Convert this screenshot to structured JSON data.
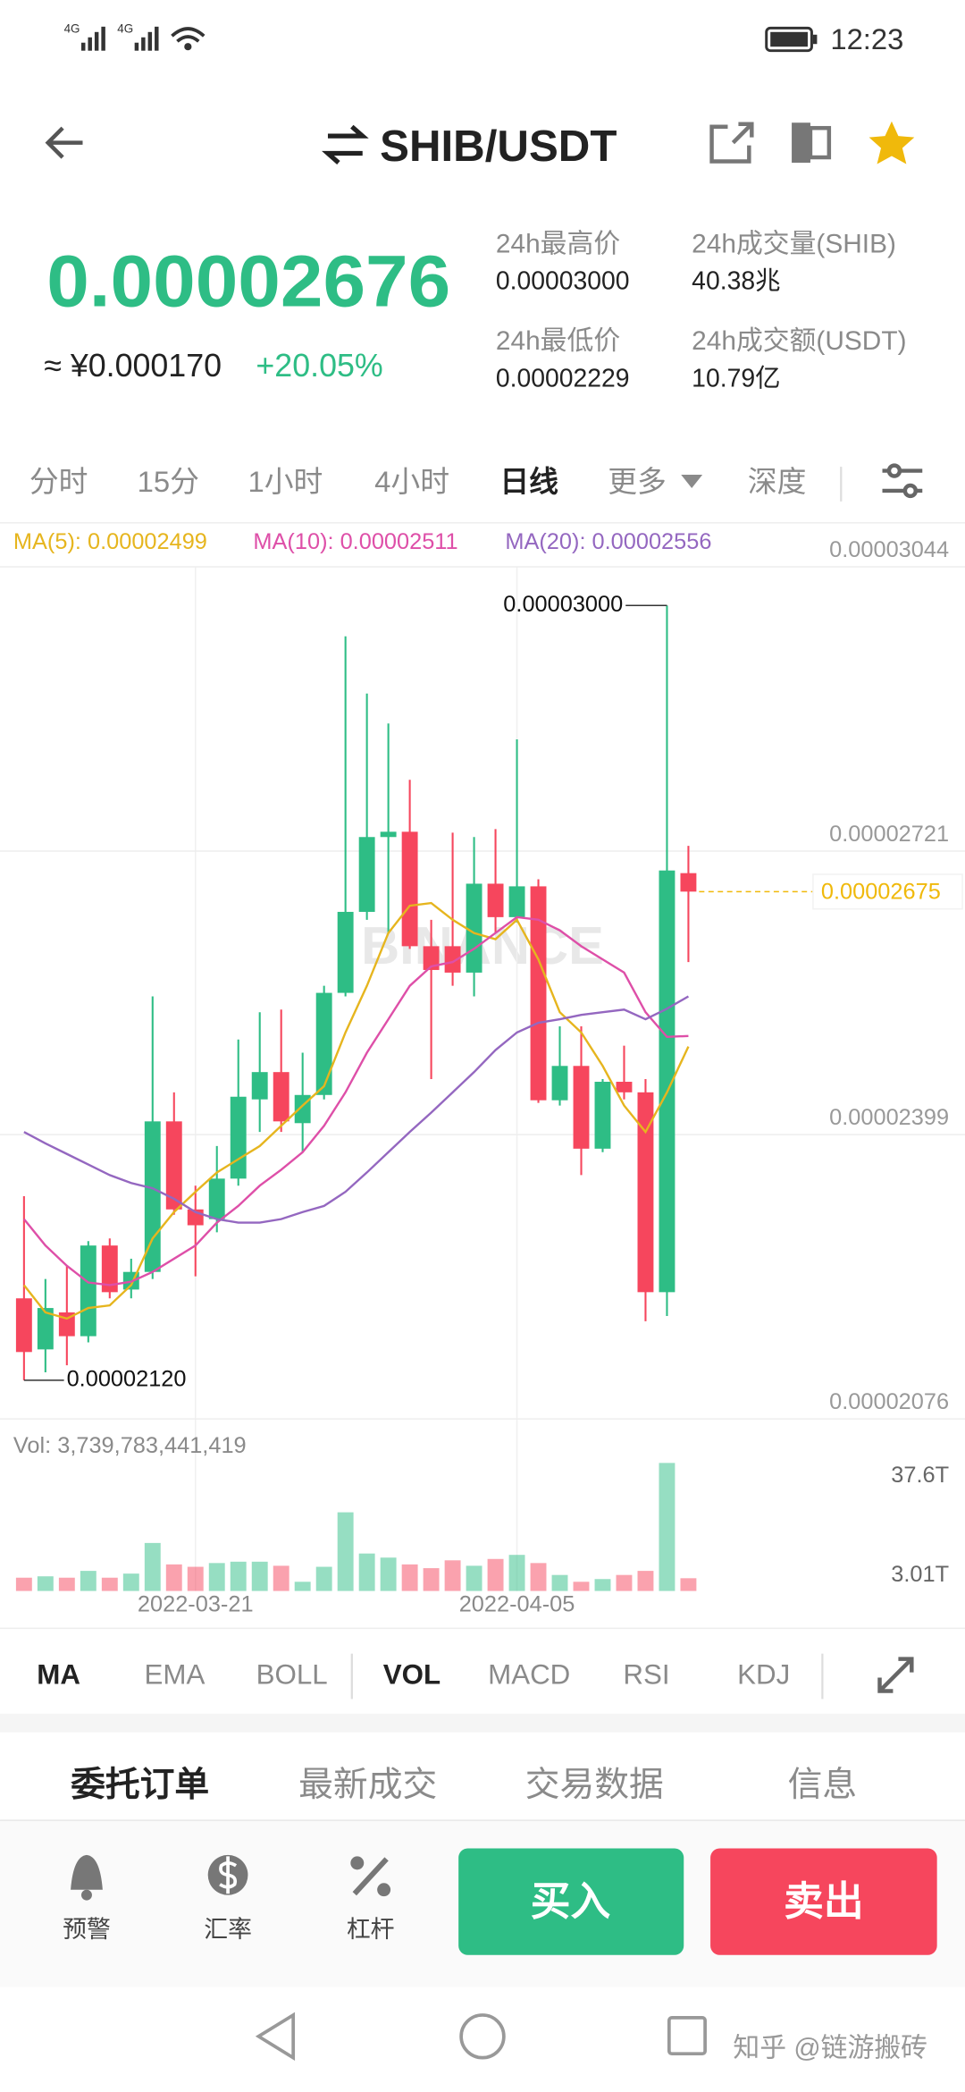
{
  "status_bar": {
    "signal_1": "4G",
    "signal_2": "4G",
    "time": "12:23"
  },
  "header": {
    "pair": "SHIB/USDT"
  },
  "ticker": {
    "last_price": "0.00002676",
    "cny_price": "≈ ¥0.000170",
    "change": "+20.05%",
    "stats": [
      {
        "label": "24h最高价",
        "value": "0.00003000"
      },
      {
        "label": "24h成交量(SHIB)",
        "value": "40.38兆"
      },
      {
        "label": "24h最低价",
        "value": "0.00002229"
      },
      {
        "label": "24h成交额(USDT)",
        "value": "10.79亿"
      }
    ]
  },
  "intervals": [
    {
      "label": "分时"
    },
    {
      "label": "15分"
    },
    {
      "label": "1小时"
    },
    {
      "label": "4小时"
    },
    {
      "label": "日线",
      "selected": true
    },
    {
      "label": "更多"
    },
    {
      "label": "深度"
    }
  ],
  "chart_data": {
    "type": "candlestick",
    "watermark": "BINANCE",
    "up_color": "#2ebd85",
    "down_color": "#f6465d",
    "categories": [
      null,
      null,
      null,
      null,
      null,
      null,
      null,
      null,
      "2022-03-21",
      null,
      null,
      null,
      null,
      null,
      null,
      null,
      null,
      null,
      null,
      null,
      null,
      null,
      null,
      "2022-04-05",
      null,
      null,
      null,
      null,
      null,
      null,
      null,
      null
    ],
    "open": [
      2.213e-05,
      2.155e-05,
      2.197e-05,
      2.17e-05,
      2.273e-05,
      2.223e-05,
      2.243e-05,
      2.414e-05,
      2.314e-05,
      2.303e-05,
      2.349e-05,
      2.439e-05,
      2.47e-05,
      2.412e-05,
      2.444e-05,
      2.56e-05,
      2.652e-05,
      2.737e-05,
      2.743e-05,
      2.613e-05,
      2.613e-05,
      2.583e-05,
      2.684e-05,
      2.646e-05,
      2.681e-05,
      2.438e-05,
      2.477e-05,
      2.383e-05,
      2.459e-05,
      2.447e-05,
      2.22e-05,
      2.696e-05
    ],
    "high": [
      2.329e-05,
      2.235e-05,
      2.25e-05,
      2.278e-05,
      2.281e-05,
      2.258e-05,
      2.556e-05,
      2.447e-05,
      2.341e-05,
      2.386e-05,
      2.507e-05,
      2.538e-05,
      2.541e-05,
      2.492e-05,
      2.568e-05,
      2.965e-05,
      2.9e-05,
      2.866e-05,
      2.802e-05,
      2.643e-05,
      2.742e-05,
      2.737e-05,
      2.746e-05,
      2.848e-05,
      2.689e-05,
      2.522e-05,
      2.522e-05,
      2.462e-05,
      2.5e-05,
      2.462e-05,
      3e-05,
      2.727e-05
    ],
    "low": [
      2.12e-05,
      2.129e-05,
      2.137e-05,
      2.163e-05,
      2.213e-05,
      2.213e-05,
      2.235e-05,
      2.308e-05,
      2.238e-05,
      2.288e-05,
      2.341e-05,
      2.402e-05,
      2.402e-05,
      2.379e-05,
      2.439e-05,
      2.556e-05,
      2.643e-05,
      2.628e-05,
      2.61e-05,
      2.462e-05,
      2.568e-05,
      2.556e-05,
      2.628e-05,
      2.64e-05,
      2.435e-05,
      2.432e-05,
      2.353e-05,
      2.379e-05,
      2.439e-05,
      2.187e-05,
      2.193e-05,
      2.595e-05
    ],
    "close": [
      2.152e-05,
      2.202e-05,
      2.17e-05,
      2.273e-05,
      2.22e-05,
      2.243e-05,
      2.414e-05,
      2.314e-05,
      2.296e-05,
      2.349e-05,
      2.442e-05,
      2.47e-05,
      2.414e-05,
      2.444e-05,
      2.56e-05,
      2.652e-05,
      2.737e-05,
      2.743e-05,
      2.613e-05,
      2.586e-05,
      2.583e-05,
      2.684e-05,
      2.646e-05,
      2.681e-05,
      2.438e-05,
      2.477e-05,
      2.383e-05,
      2.459e-05,
      2.447e-05,
      2.22e-05,
      2.699e-05,
      2.675e-05
    ],
    "series": [
      {
        "name": "MA(5): 0.00002499",
        "color": "#e6b51e",
        "values": [
          2.228e-05,
          2.197e-05,
          2.19e-05,
          2.202e-05,
          2.205e-05,
          2.228e-05,
          2.281e-05,
          2.311e-05,
          2.334e-05,
          2.356e-05,
          2.371e-05,
          2.386e-05,
          2.409e-05,
          2.432e-05,
          2.454e-05,
          2.515e-05,
          2.568e-05,
          2.628e-05,
          2.659e-05,
          2.662e-05,
          2.643e-05,
          2.628e-05,
          2.621e-05,
          2.643e-05,
          2.598e-05,
          2.538e-05,
          2.515e-05,
          2.477e-05,
          2.432e-05,
          2.402e-05,
          2.447e-05,
          2.499e-05
        ]
      },
      {
        "name": "MA(10): 0.00002511",
        "color": "#de4fa8",
        "values": [
          2.303e-05,
          2.273e-05,
          2.25e-05,
          2.231e-05,
          2.228e-05,
          2.232e-05,
          2.243e-05,
          2.258e-05,
          2.273e-05,
          2.299e-05,
          2.318e-05,
          2.341e-05,
          2.359e-05,
          2.379e-05,
          2.409e-05,
          2.447e-05,
          2.492e-05,
          2.53e-05,
          2.568e-05,
          2.59e-05,
          2.595e-05,
          2.61e-05,
          2.628e-05,
          2.646e-05,
          2.643e-05,
          2.631e-05,
          2.613e-05,
          2.598e-05,
          2.583e-05,
          2.538e-05,
          2.51e-05,
          2.511e-05
        ]
      },
      {
        "name": "MA(20): 0.00002556",
        "color": "#9467c0",
        "values": [
          2.402e-05,
          2.389e-05,
          2.377e-05,
          2.365e-05,
          2.353e-05,
          2.344e-05,
          2.338e-05,
          2.326e-05,
          2.311e-05,
          2.303e-05,
          2.299e-05,
          2.299e-05,
          2.303e-05,
          2.311e-05,
          2.318e-05,
          2.334e-05,
          2.356e-05,
          2.379e-05,
          2.402e-05,
          2.424e-05,
          2.447e-05,
          2.47e-05,
          2.495e-05,
          2.515e-05,
          2.526e-05,
          2.53e-05,
          2.535e-05,
          2.538e-05,
          2.541e-05,
          2.53e-05,
          2.542e-05,
          2.556e-05
        ]
      }
    ],
    "ylim": [
      2.076e-05,
      3.044e-05
    ],
    "yticks": [
      3.044e-05,
      2.721e-05,
      2.399e-05,
      2.076e-05
    ],
    "grid": true,
    "annotations": {
      "high": {
        "value": 3e-05,
        "label": "0.00003000"
      },
      "low": {
        "value": 2.12e-05,
        "label": "0.00002120"
      },
      "last": 2.675e-05,
      "last_color": "#f0b90b"
    },
    "volume": {
      "label": "Vol: 3,739,783,441,419",
      "values": [
        3.9,
        4.3,
        3.9,
        5.9,
        3.9,
        5.1,
        14.1,
        7.8,
        7.1,
        8.2,
        8.6,
        8.6,
        7.4,
        2.7,
        7.1,
        23.1,
        11,
        9.8,
        7.8,
        6.7,
        9,
        7.4,
        9.4,
        10.6,
        8.2,
        4.7,
        2.7,
        3.5,
        4.7,
        5.9,
        37.6,
        3.74
      ],
      "ylim": [
        0,
        37.6
      ],
      "yticks": [
        {
          "value": 37.6,
          "label": "37.6T"
        },
        {
          "value": 3.01,
          "label": "3.01T"
        }
      ]
    }
  },
  "indicators": [
    {
      "label": "MA",
      "selected": true
    },
    {
      "label": "EMA"
    },
    {
      "label": "BOLL"
    },
    {
      "label": "VOL",
      "selected": true
    },
    {
      "label": "MACD"
    },
    {
      "label": "RSI"
    },
    {
      "label": "KDJ"
    }
  ],
  "tabs": [
    {
      "label": "委托订单",
      "selected": true
    },
    {
      "label": "最新成交"
    },
    {
      "label": "交易数据"
    },
    {
      "label": "信息"
    }
  ],
  "bottom_bar": {
    "actions": [
      "预警",
      "汇率",
      "杠杆"
    ],
    "buy": "买入",
    "sell": "卖出"
  },
  "watermark": "知乎 @链游搬砖"
}
